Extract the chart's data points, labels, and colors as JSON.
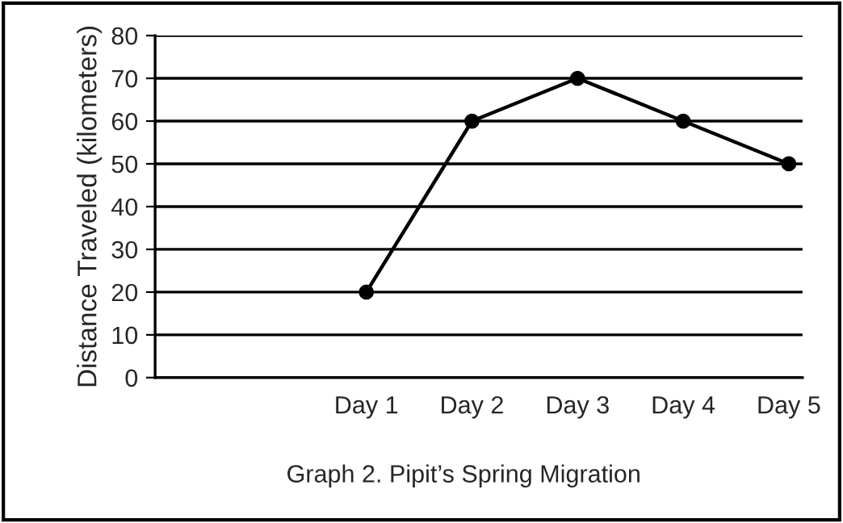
{
  "chart_data": {
    "type": "line",
    "title": "Graph 2. Pipit’s Spring Migration",
    "ylabel": "Distance Traveled (kilometers)",
    "categories": [
      null,
      "Day 1",
      "Day 2",
      "Day 3",
      "Day 4",
      "Day 5"
    ],
    "series": [
      {
        "color": "#000000",
        "values": [
          null,
          20,
          60,
          70,
          60,
          50
        ]
      }
    ],
    "ylim": [
      0,
      80
    ],
    "yticks": [
      0,
      10,
      20,
      30,
      40,
      50,
      60,
      70,
      80
    ],
    "grid": "y",
    "marker": "circle",
    "line_style": "solid",
    "legend": false
  }
}
